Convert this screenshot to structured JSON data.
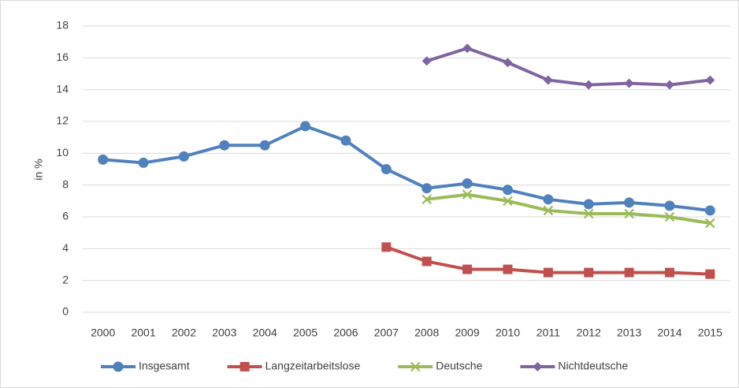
{
  "chart_data": {
    "type": "line",
    "ylabel": "in %",
    "categories": [
      "2000",
      "2001",
      "2002",
      "2003",
      "2004",
      "2005",
      "2006",
      "2007",
      "2008",
      "2009",
      "2010",
      "2011",
      "2012",
      "2013",
      "2014",
      "2015"
    ],
    "series": [
      {
        "name": "Insgesamt",
        "color": "#4f81bd",
        "marker": "circle",
        "values": [
          9.6,
          9.4,
          9.8,
          10.5,
          10.5,
          11.7,
          10.8,
          9.0,
          7.8,
          8.1,
          7.7,
          7.1,
          6.8,
          6.9,
          6.7,
          6.4
        ]
      },
      {
        "name": "Langzeitarbeitslose",
        "color": "#c0504d",
        "marker": "square",
        "values": [
          null,
          null,
          null,
          null,
          null,
          null,
          null,
          4.1,
          3.2,
          2.7,
          2.7,
          2.5,
          2.5,
          2.5,
          2.5,
          2.4
        ]
      },
      {
        "name": "Deutsche",
        "color": "#9bbb59",
        "marker": "x",
        "values": [
          null,
          null,
          null,
          null,
          null,
          null,
          null,
          null,
          7.1,
          7.4,
          7.0,
          6.4,
          6.2,
          6.2,
          6.0,
          5.6
        ]
      },
      {
        "name": "Nichtdeutsche",
        "color": "#8064a2",
        "marker": "diamond",
        "values": [
          null,
          null,
          null,
          null,
          null,
          null,
          null,
          null,
          15.8,
          16.6,
          15.7,
          14.6,
          14.3,
          14.4,
          14.3,
          14.6
        ]
      }
    ],
    "ylim": [
      0,
      18
    ],
    "yticks": [
      0,
      2,
      4,
      6,
      8,
      10,
      12,
      14,
      16,
      18
    ],
    "grid": true,
    "legend": "bottom"
  }
}
